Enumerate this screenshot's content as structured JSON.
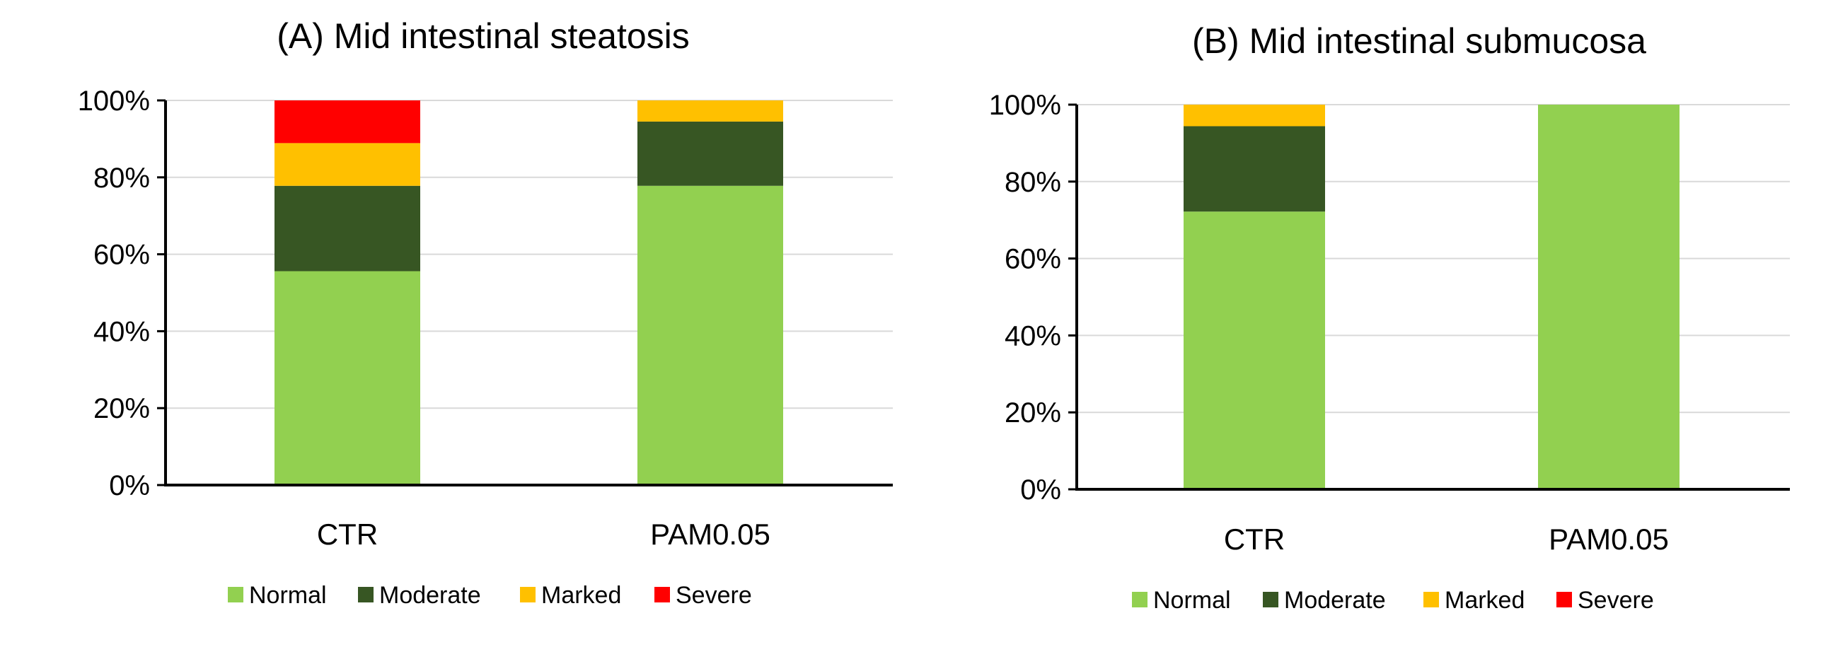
{
  "chart_data": [
    {
      "type": "bar",
      "stacked": true,
      "title": "(A) Mid intestinal steatosis",
      "categories": [
        "CTR",
        "PAM0.05"
      ],
      "ylim": [
        0,
        100
      ],
      "yticks": [
        "0%",
        "20%",
        "40%",
        "60%",
        "80%",
        "100%"
      ],
      "grid": true,
      "legend_position": "bottom",
      "series": [
        {
          "name": "Normal",
          "color": "#92D050",
          "values": [
            55.6,
            77.8
          ]
        },
        {
          "name": "Moderate",
          "color": "#375623",
          "values": [
            22.2,
            16.7
          ]
        },
        {
          "name": "Marked",
          "color": "#FFC000",
          "values": [
            11.1,
            5.5
          ]
        },
        {
          "name": "Severe",
          "color": "#FF0000",
          "values": [
            11.1,
            0
          ]
        }
      ]
    },
    {
      "type": "bar",
      "stacked": true,
      "title": "(B) Mid intestinal submucosa",
      "categories": [
        "CTR",
        "PAM0.05"
      ],
      "ylim": [
        0,
        100
      ],
      "yticks": [
        "0%",
        "20%",
        "40%",
        "60%",
        "80%",
        "100%"
      ],
      "grid": true,
      "legend_position": "bottom",
      "series": [
        {
          "name": "Normal",
          "color": "#92D050",
          "values": [
            72.2,
            100
          ]
        },
        {
          "name": "Moderate",
          "color": "#375623",
          "values": [
            22.2,
            0
          ]
        },
        {
          "name": "Marked",
          "color": "#FFC000",
          "values": [
            5.6,
            0
          ]
        },
        {
          "name": "Severe",
          "color": "#FF0000",
          "values": [
            0,
            0
          ]
        }
      ]
    }
  ]
}
